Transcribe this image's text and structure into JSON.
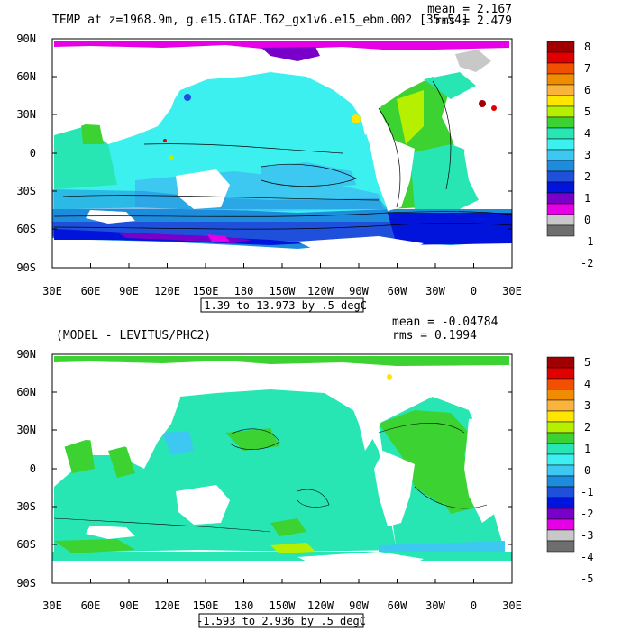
{
  "top_panel": {
    "title": "TEMP at z=1968.9m, g.e15.GIAF.T62_gx1v6.e15_ebm.002 [35-54]",
    "mean_label": "mean = 2.167",
    "rms_label": "rms = 2.479",
    "contour_info": "-1.39 to 13.973 by .5 degC",
    "lat_labels": [
      "90N",
      "60N",
      "30N",
      "0",
      "30S",
      "60S",
      "90S"
    ],
    "lon_labels": [
      "30E",
      "60E",
      "90E",
      "120E",
      "150E",
      "180",
      "150W",
      "120W",
      "90W",
      "60W",
      "30W",
      "0",
      "30E"
    ],
    "colorbar_labels": [
      "8",
      "7",
      "6",
      "5",
      "4",
      "3",
      "2",
      "1",
      "0",
      "-1",
      "-2"
    ],
    "colorbar_colors": [
      "#a00000",
      "#e00000",
      "#f05000",
      "#f08c00",
      "#fab43c",
      "#ffe600",
      "#b4f000",
      "#3cd232",
      "#28e6b4",
      "#3cf0f0",
      "#3cc8f0",
      "#1e8cdc",
      "#1e50dc",
      "#0014dc",
      "#7800c8",
      "#e600e6",
      "#c8c8c8",
      "#6e6e6e"
    ]
  },
  "bottom_panel": {
    "title": "(MODEL - LEVITUS/PHC2)",
    "mean_label": "mean = -0.04784",
    "rms_label": "rms = 0.1994",
    "contour_info": "-1.593 to 2.936 by .5 degC",
    "lat_labels": [
      "90N",
      "60N",
      "30N",
      "0",
      "30S",
      "60S",
      "90S"
    ],
    "lon_labels": [
      "30E",
      "60E",
      "90E",
      "120E",
      "150E",
      "180",
      "150W",
      "120W",
      "90W",
      "60W",
      "30W",
      "0",
      "30E"
    ],
    "colorbar_labels": [
      "5",
      "4",
      "3",
      "2",
      "1",
      "0",
      "-1",
      "-2",
      "-3",
      "-4",
      "-5"
    ],
    "colorbar_colors": [
      "#a00000",
      "#e00000",
      "#f05000",
      "#f08c00",
      "#fab43c",
      "#ffe600",
      "#b4f000",
      "#3cd232",
      "#28e6b4",
      "#3cf0f0",
      "#3cc8f0",
      "#1e8cdc",
      "#1e50dc",
      "#0014dc",
      "#7800c8",
      "#e600e6",
      "#c8c8c8",
      "#6e6e6e"
    ]
  }
}
